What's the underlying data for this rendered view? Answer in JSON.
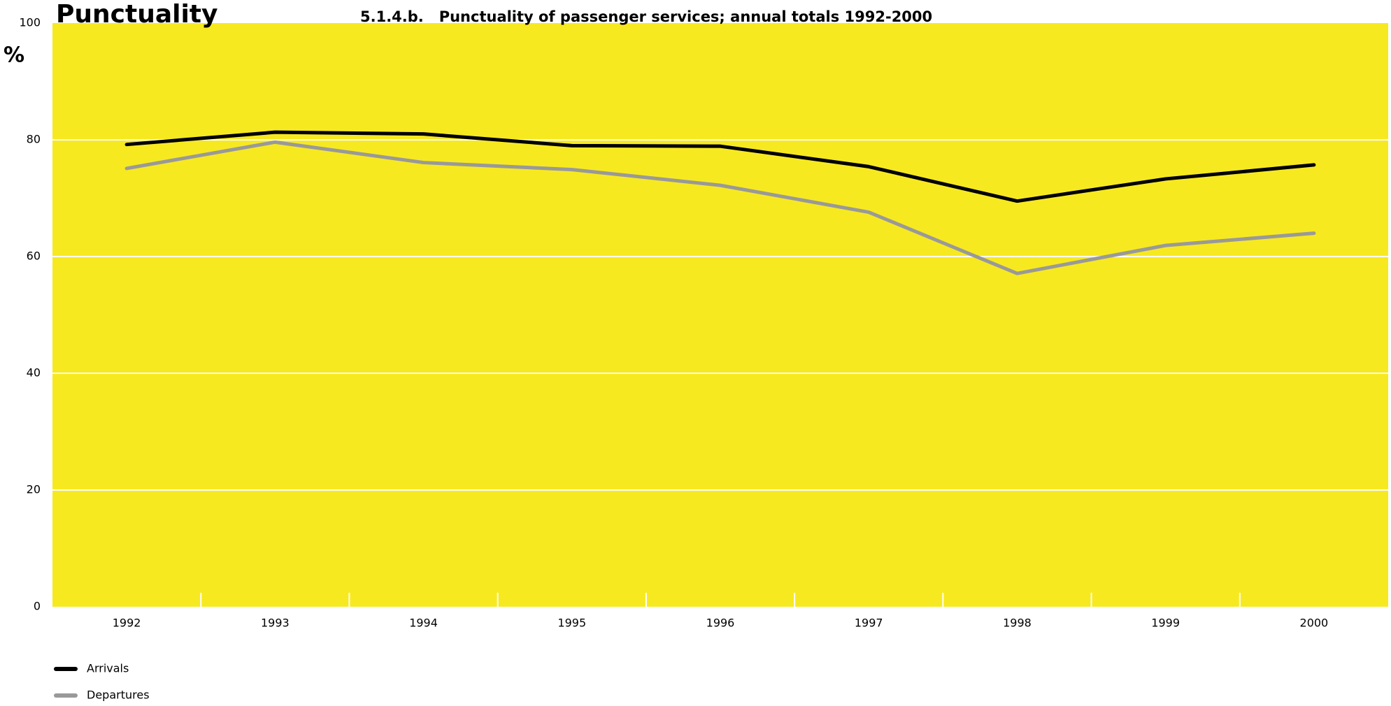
{
  "chart_data": {
    "type": "line",
    "title": "Punctuality",
    "subtitle": "5.1.4.b.   Punctuality of passenger services; annual totals 1992-2000",
    "y_label": "%",
    "categories": [
      "1992",
      "1993",
      "1994",
      "1995",
      "1996",
      "1997",
      "1998",
      "1999",
      "2000"
    ],
    "series": [
      {
        "name": "Arrivals",
        "color": "#000000",
        "values": [
          79.2,
          81.3,
          81.0,
          79.0,
          78.9,
          75.4,
          69.5,
          73.3,
          75.7
        ]
      },
      {
        "name": "Departures",
        "color": "#999999",
        "values": [
          75.1,
          79.6,
          76.1,
          74.9,
          72.2,
          67.6,
          57.1,
          61.9,
          64.0
        ]
      }
    ],
    "ylim": [
      0,
      100
    ],
    "yticks": [
      0,
      20,
      40,
      60,
      80,
      100
    ],
    "grid": true,
    "background": "#f7e920",
    "legend": "bottom-left"
  }
}
